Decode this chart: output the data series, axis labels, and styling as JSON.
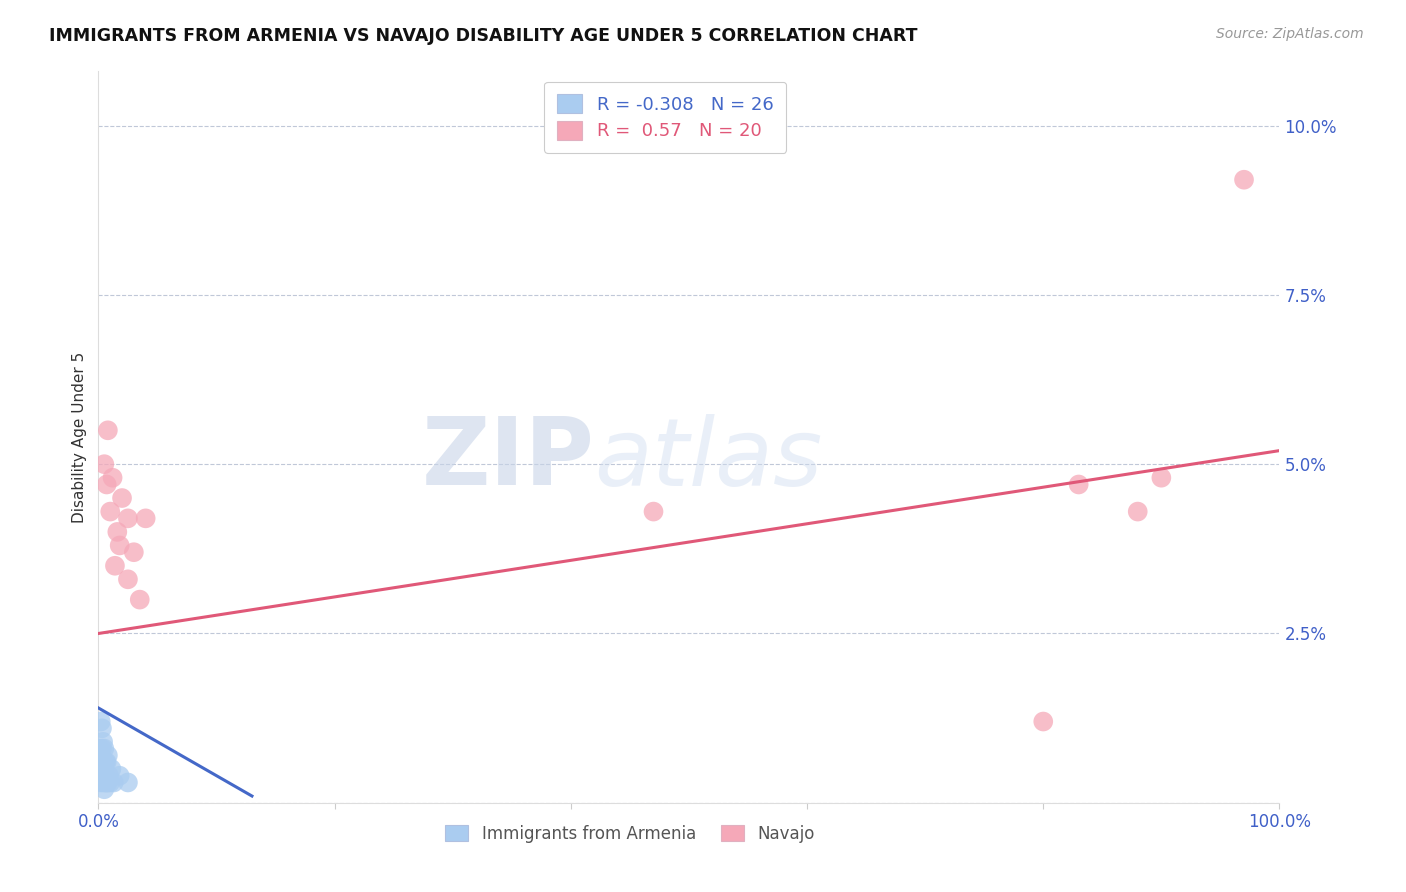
{
  "title": "IMMIGRANTS FROM ARMENIA VS NAVAJO DISABILITY AGE UNDER 5 CORRELATION CHART",
  "source": "Source: ZipAtlas.com",
  "ylabel": "Disability Age Under 5",
  "xlim": [
    0,
    1.0
  ],
  "ylim": [
    0,
    0.108
  ],
  "yticks": [
    0.0,
    0.025,
    0.05,
    0.075,
    0.1
  ],
  "ytick_labels": [
    "",
    "2.5%",
    "5.0%",
    "7.5%",
    "10.0%"
  ],
  "xticks": [
    0,
    0.2,
    0.4,
    0.6,
    0.8,
    1.0
  ],
  "xtick_labels": [
    "0.0%",
    "",
    "",
    "",
    "",
    "100.0%"
  ],
  "blue_R": -0.308,
  "blue_N": 26,
  "pink_R": 0.57,
  "pink_N": 20,
  "blue_color": "#aaccf0",
  "pink_color": "#f5a8b8",
  "blue_line_color": "#4468c8",
  "pink_line_color": "#e05878",
  "legend_label_blue": "Immigrants from Armenia",
  "legend_label_pink": "Navajo",
  "watermark_zip": "ZIP",
  "watermark_atlas": "atlas",
  "blue_x": [
    0.001,
    0.001,
    0.002,
    0.002,
    0.002,
    0.003,
    0.003,
    0.003,
    0.004,
    0.004,
    0.004,
    0.005,
    0.005,
    0.005,
    0.006,
    0.006,
    0.007,
    0.007,
    0.008,
    0.008,
    0.009,
    0.01,
    0.011,
    0.013,
    0.018,
    0.025
  ],
  "blue_y": [
    0.005,
    0.008,
    0.003,
    0.007,
    0.012,
    0.004,
    0.008,
    0.011,
    0.003,
    0.006,
    0.009,
    0.002,
    0.005,
    0.008,
    0.003,
    0.006,
    0.003,
    0.006,
    0.003,
    0.007,
    0.004,
    0.003,
    0.005,
    0.003,
    0.004,
    0.003
  ],
  "pink_x": [
    0.005,
    0.007,
    0.008,
    0.01,
    0.012,
    0.014,
    0.016,
    0.018,
    0.02,
    0.025,
    0.025,
    0.03,
    0.035,
    0.04,
    0.47,
    0.8,
    0.83,
    0.88,
    0.9,
    0.97
  ],
  "pink_y": [
    0.05,
    0.047,
    0.055,
    0.043,
    0.048,
    0.035,
    0.04,
    0.038,
    0.045,
    0.033,
    0.042,
    0.037,
    0.03,
    0.042,
    0.043,
    0.012,
    0.047,
    0.043,
    0.048,
    0.092
  ],
  "blue_trend_x": [
    0.0,
    0.13
  ],
  "blue_trend_y": [
    0.014,
    0.001
  ],
  "pink_trend_x": [
    0.0,
    1.0
  ],
  "pink_trend_y": [
    0.025,
    0.052
  ]
}
